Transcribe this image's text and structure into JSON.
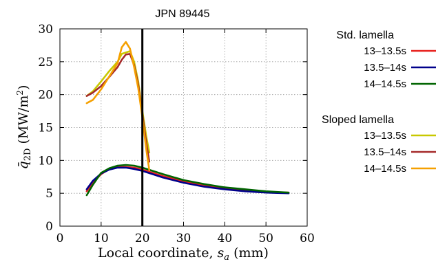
{
  "chart_data": {
    "type": "line",
    "title": "JPN 89445",
    "xlabel_main": "Local coordinate, ",
    "xlabel_var": "s",
    "xlabel_sub": "a",
    "xlabel_unit": " (mm)",
    "ylabel_main": "q̄",
    "ylabel_sub": "2D",
    "ylabel_unit": " (MW/m",
    "ylabel_sup": "2",
    "ylabel_close": ")",
    "xlim": [
      0,
      60
    ],
    "ylim": [
      0,
      30
    ],
    "xticks": [
      0,
      10,
      20,
      30,
      40,
      50,
      60
    ],
    "yticks": [
      0,
      5,
      10,
      15,
      20,
      25,
      30
    ],
    "grid": true,
    "vline_x": 20,
    "legend": {
      "placement": "outside-right",
      "groups": [
        {
          "title": "Std. lamella",
          "items": [
            {
              "label": "13–13.5s",
              "color": "#e8201c"
            },
            {
              "label": "13.5–14s",
              "color": "#00008b"
            },
            {
              "label": "14–14.5s",
              "color": "#006400"
            }
          ]
        },
        {
          "title": "Sloped lamella",
          "items": [
            {
              "label": "13–13.5s",
              "color": "#c8c800"
            },
            {
              "label": "13.5–14s",
              "color": "#a52a2a"
            },
            {
              "label": "14–14.5s",
              "color": "#f5a000"
            }
          ]
        }
      ]
    },
    "series": [
      {
        "name": "Std. lamella 13–13.5s",
        "color": "#e8201c",
        "x": [
          6.5,
          8,
          10,
          12,
          14,
          16,
          18,
          20,
          25,
          30,
          35,
          40,
          45,
          50,
          55.5
        ],
        "y": [
          5.3,
          6.6,
          7.9,
          8.7,
          9.0,
          9.0,
          8.9,
          8.6,
          7.6,
          6.8,
          6.2,
          5.8,
          5.5,
          5.2,
          5.1
        ]
      },
      {
        "name": "Std. lamella 13.5–14s",
        "color": "#00008b",
        "x": [
          6.5,
          8,
          10,
          12,
          14,
          16,
          18,
          20,
          25,
          30,
          35,
          40,
          45,
          50,
          55.5
        ],
        "y": [
          5.6,
          6.9,
          8.0,
          8.6,
          8.9,
          8.9,
          8.7,
          8.4,
          7.4,
          6.6,
          6.0,
          5.6,
          5.3,
          5.1,
          5.0
        ]
      },
      {
        "name": "Std. lamella 14–14.5s",
        "color": "#006400",
        "x": [
          6.5,
          8,
          10,
          12,
          14,
          16,
          18,
          20,
          25,
          30,
          35,
          40,
          45,
          50,
          55.5
        ],
        "y": [
          4.7,
          6.3,
          8.1,
          8.8,
          9.2,
          9.3,
          9.2,
          8.9,
          7.9,
          7.0,
          6.4,
          5.9,
          5.6,
          5.3,
          5.1
        ]
      },
      {
        "name": "Sloped lamella 13–13.5s",
        "color": "#c8c800",
        "x": [
          6.5,
          8,
          10,
          12,
          14,
          15,
          16,
          17,
          18,
          19,
          20,
          21,
          21.7
        ],
        "y": [
          19.8,
          20.5,
          22.0,
          23.6,
          25.0,
          26.2,
          26.4,
          26.6,
          25.0,
          22.0,
          17.5,
          13.5,
          11.2
        ]
      },
      {
        "name": "Sloped lamella 13.5–14s",
        "color": "#a52a2a",
        "x": [
          6.5,
          8,
          10,
          12,
          14,
          15,
          16,
          17,
          18,
          19,
          20,
          21,
          21.7
        ],
        "y": [
          19.8,
          20.3,
          21.3,
          22.7,
          24.2,
          25.3,
          26.1,
          26.2,
          24.5,
          21.5,
          17.0,
          12.5,
          9.8
        ]
      },
      {
        "name": "Sloped lamella 14–14.5s",
        "color": "#f5a000",
        "x": [
          6.5,
          8,
          10,
          12,
          14,
          15,
          16,
          17,
          18,
          19,
          20,
          21,
          21.7
        ],
        "y": [
          18.7,
          19.2,
          20.8,
          22.8,
          24.8,
          27.2,
          28.0,
          27.0,
          24.2,
          21.0,
          16.5,
          11.5,
          8.5
        ]
      }
    ]
  }
}
